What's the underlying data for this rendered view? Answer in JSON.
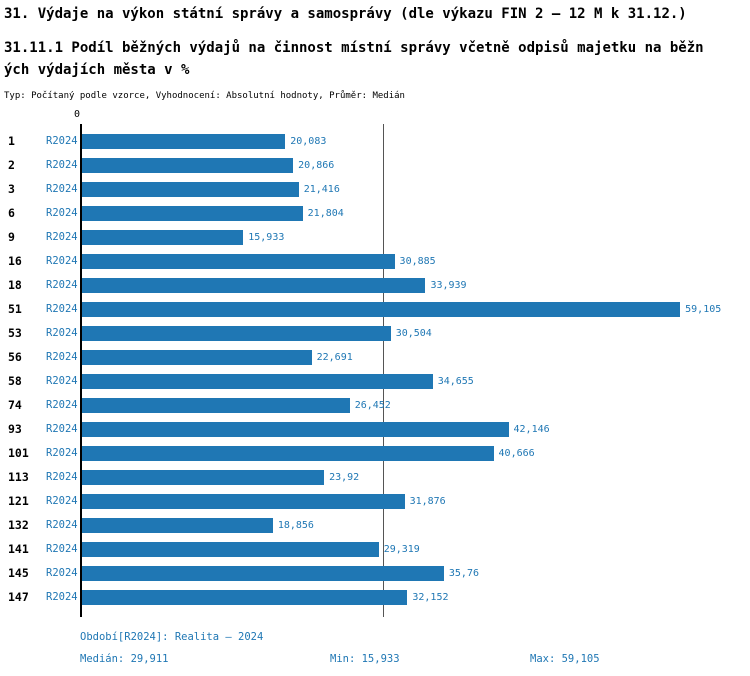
{
  "header": {
    "title": "31. Výdaje na výkon státní správy a samosprávy (dle výkazu FIN 2 – 12 M k 31.12.)",
    "subtitle": "31.11.1 Podíl běžných výdajů na činnost místní správy včetně odpisů majetku na běžných výdajích města v %",
    "meta": "Typ: Počítaný podle vzorce, Vyhodnocení: Absolutní hodnoty, Průměr: Medián"
  },
  "chart_data": {
    "type": "bar",
    "orientation": "horizontal",
    "title": "31.11.1 Podíl běžných výdajů na činnost místní správy včetně odpisů majetku na běžných výdajích města v %",
    "series_label": "R2024",
    "zero_label": "0",
    "categories": [
      "1",
      "2",
      "3",
      "6",
      "9",
      "16",
      "18",
      "51",
      "53",
      "56",
      "58",
      "74",
      "93",
      "101",
      "113",
      "121",
      "132",
      "141",
      "145",
      "147"
    ],
    "values": [
      20.083,
      20.866,
      21.416,
      21.804,
      15.933,
      30.885,
      33.939,
      59.105,
      30.504,
      22.691,
      34.655,
      26.452,
      42.146,
      40.666,
      23.92,
      31.876,
      18.856,
      29.319,
      35.76,
      32.152
    ],
    "value_labels": [
      "20,083",
      "20,866",
      "21,416",
      "21,804",
      "15,933",
      "30,885",
      "33,939",
      "59,105",
      "30,504",
      "22,691",
      "34,655",
      "26,452",
      "42,146",
      "40,666",
      "23,92",
      "31,876",
      "18,856",
      "29,319",
      "35,76",
      "32,152"
    ],
    "median": 29.911,
    "min": 15.933,
    "max": 59.105,
    "xlim": [
      0,
      62
    ],
    "bar_color": "#1f77b4",
    "legend_position": "none",
    "grid": false
  },
  "footer": {
    "period": "Období[R2024]: Realita – 2024",
    "median": "Medián: 29,911",
    "min": "Min: 15,933",
    "max": "Max: 59,105"
  }
}
